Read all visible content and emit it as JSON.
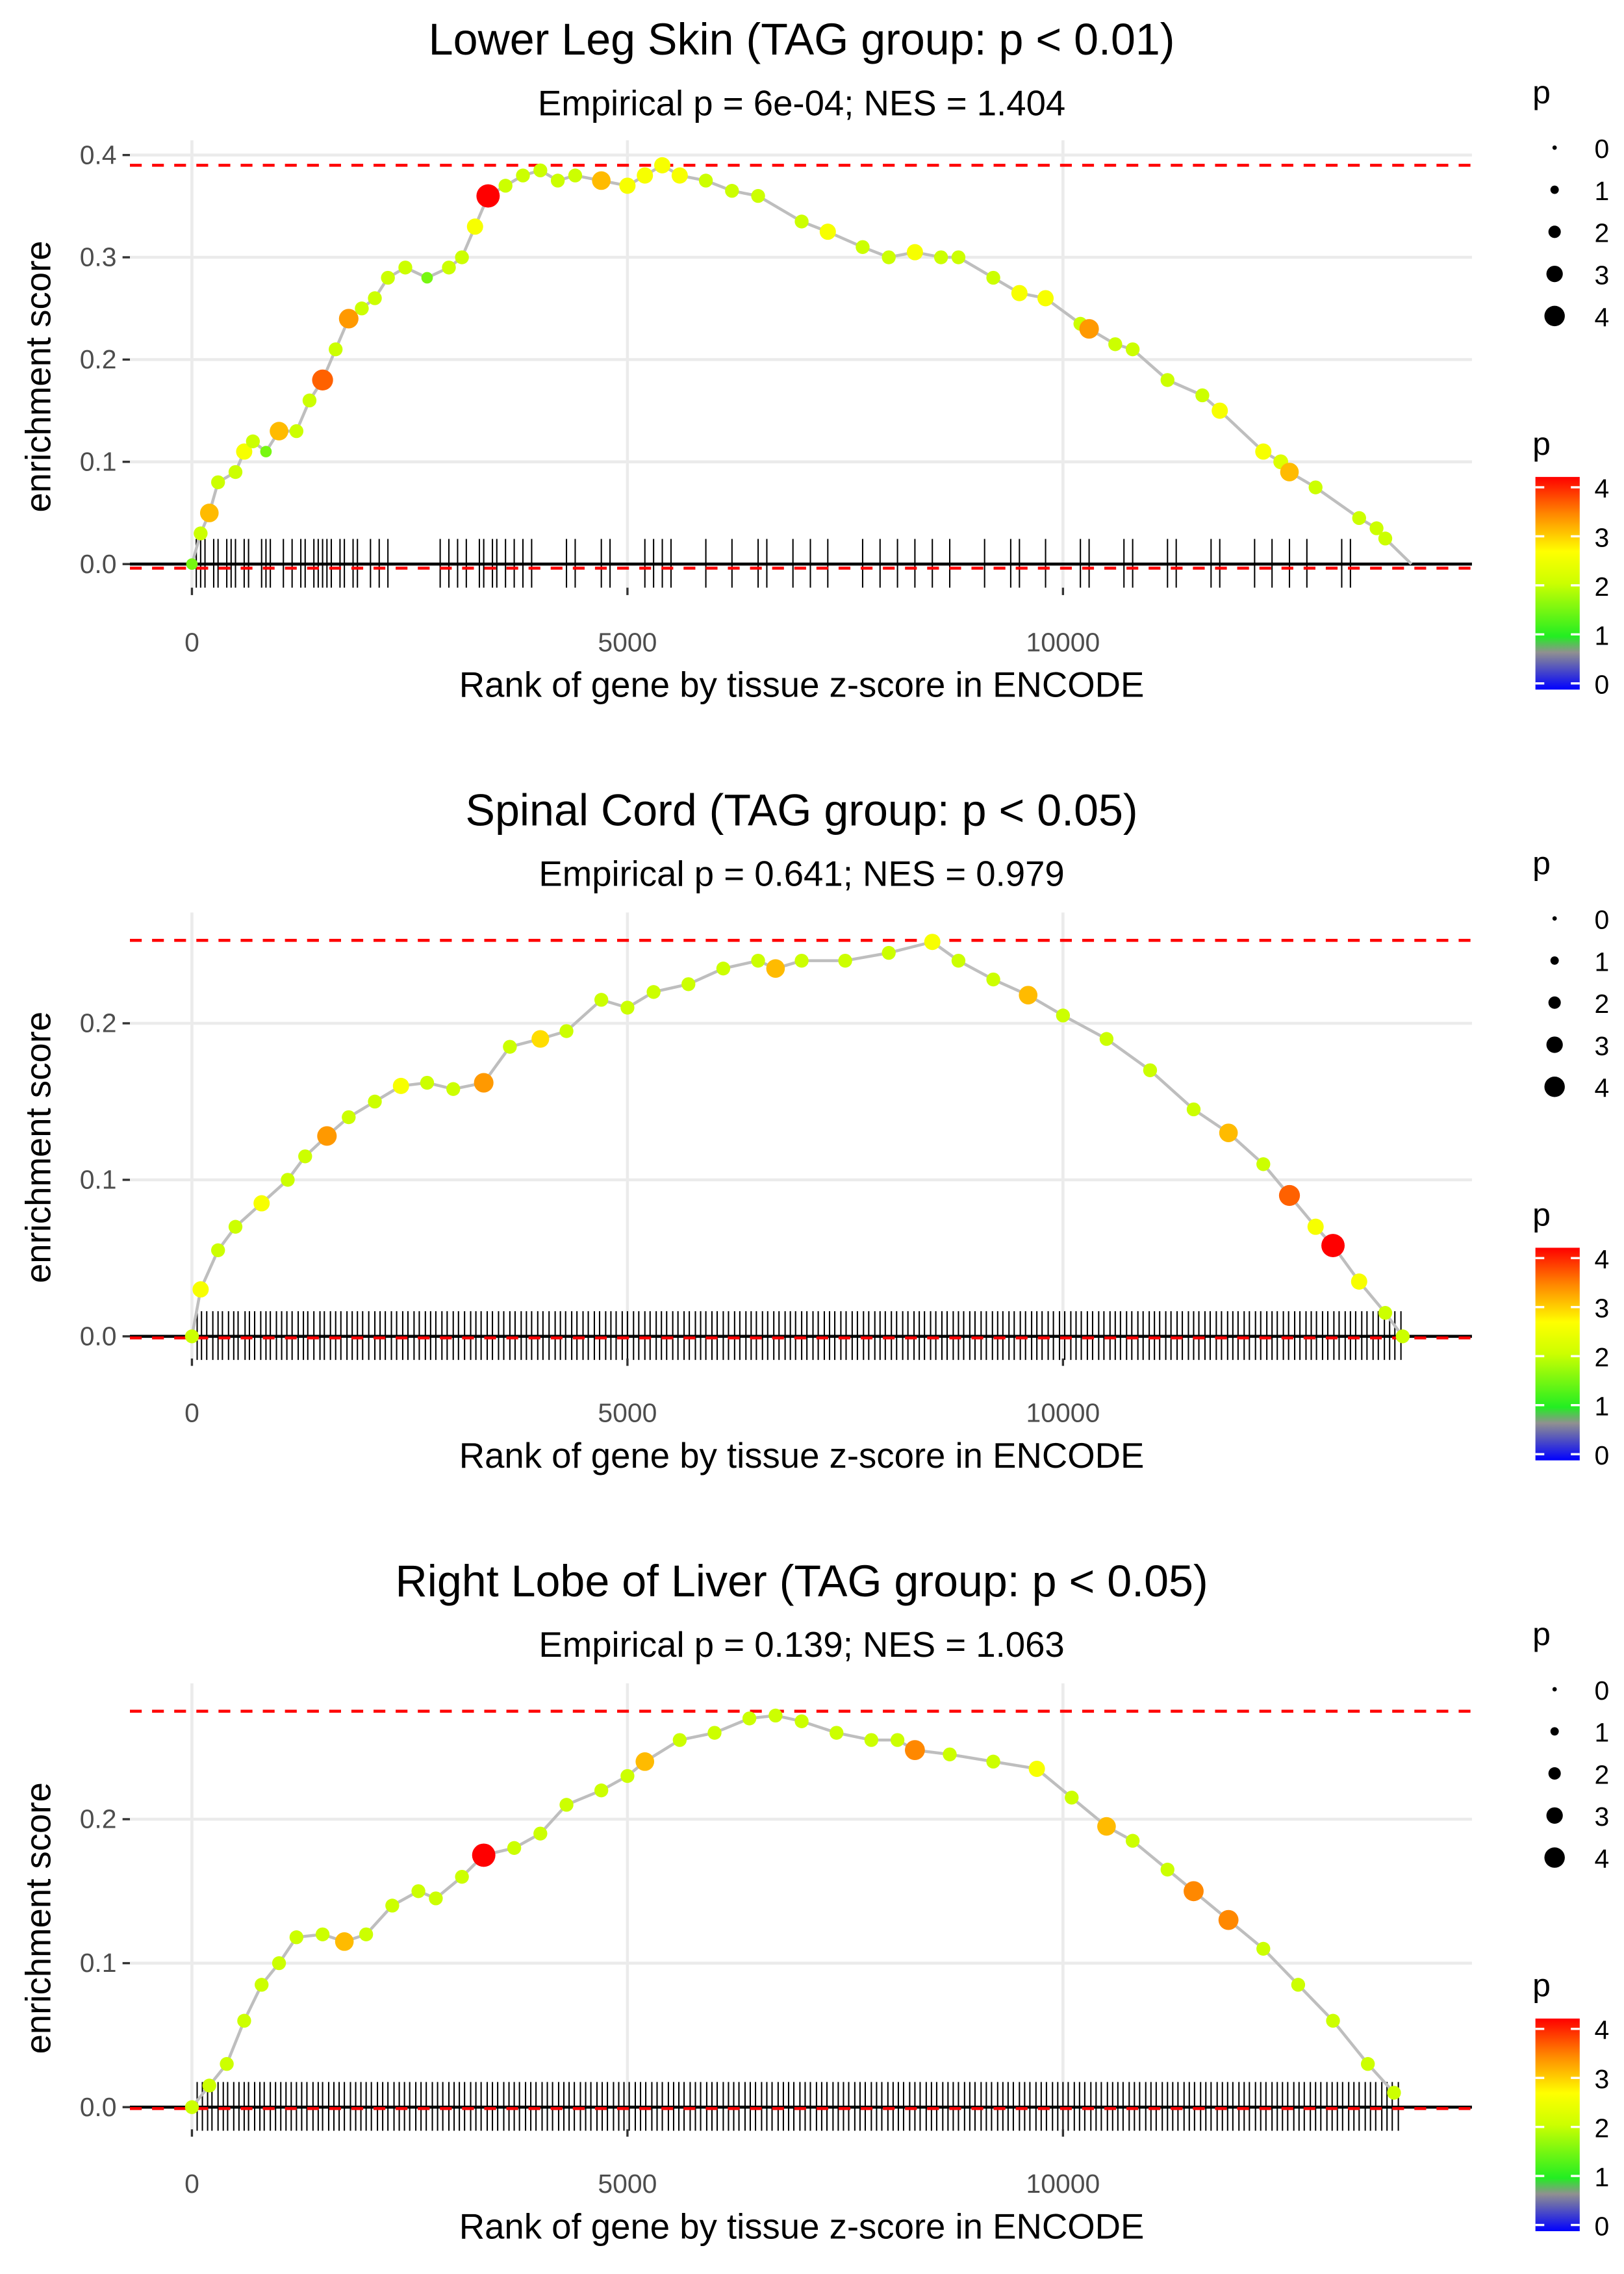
{
  "colors": {
    "threshold_line": "#ff0000",
    "running_line": "#bebebe",
    "grid": "#ebebeb",
    "baseline": "#000000"
  },
  "color_scale": {
    "domain": [
      0,
      0.7,
      1,
      2,
      2.6,
      3.3,
      4
    ],
    "range": [
      "#0000ff",
      "#909090",
      "#22ee22",
      "#ccff00",
      "#ffff00",
      "#ff8800",
      "#ff0000"
    ]
  },
  "legend": {
    "size_title": "p",
    "color_title": "p",
    "size_labels": [
      "0",
      "1",
      "2",
      "3",
      "4"
    ],
    "color_labels": [
      "4",
      "3",
      "2",
      "1",
      "0"
    ]
  },
  "chart_data": [
    {
      "type": "line",
      "title": "Lower Leg Skin (TAG group: p < 0.01)",
      "subtitle": "Empirical p = 6e-04; NES = 1.404",
      "xlabel": "Rank of gene by tissue z-score in ENCODE",
      "ylabel": "enrichment score",
      "xlim": [
        -700,
        14500
      ],
      "x_ticks": [
        "0",
        "5000",
        "10000"
      ],
      "x_tick_values": [
        0,
        5000,
        10000
      ],
      "y_ticks": [
        "0.0",
        "0.1",
        "0.2",
        "0.3",
        "0.4"
      ],
      "y_tick_values": [
        0,
        0.1,
        0.2,
        0.3,
        0.4
      ],
      "max_es": 0.39,
      "min_es": -0.004,
      "points": [
        [
          0,
          0,
          1.5
        ],
        [
          100,
          0.03,
          2
        ],
        [
          200,
          0.05,
          3
        ],
        [
          300,
          0.08,
          2
        ],
        [
          500,
          0.09,
          2
        ],
        [
          600,
          0.11,
          2.5
        ],
        [
          700,
          0.12,
          2
        ],
        [
          850,
          0.11,
          1.5
        ],
        [
          1000,
          0.13,
          3
        ],
        [
          1200,
          0.13,
          2
        ],
        [
          1350,
          0.16,
          2
        ],
        [
          1500,
          0.18,
          3.5
        ],
        [
          1650,
          0.21,
          2
        ],
        [
          1800,
          0.24,
          3.2
        ],
        [
          1950,
          0.25,
          2
        ],
        [
          2100,
          0.26,
          2
        ],
        [
          2250,
          0.28,
          2
        ],
        [
          2450,
          0.29,
          2
        ],
        [
          2700,
          0.28,
          1.5
        ],
        [
          2950,
          0.29,
          2
        ],
        [
          3100,
          0.3,
          2
        ],
        [
          3250,
          0.33,
          2.5
        ],
        [
          3400,
          0.36,
          4
        ],
        [
          3600,
          0.37,
          2
        ],
        [
          3800,
          0.38,
          2
        ],
        [
          4000,
          0.385,
          2
        ],
        [
          4200,
          0.375,
          2
        ],
        [
          4400,
          0.38,
          2
        ],
        [
          4700,
          0.375,
          3
        ],
        [
          5000,
          0.37,
          2.5
        ],
        [
          5200,
          0.38,
          2.5
        ],
        [
          5400,
          0.39,
          2.5
        ],
        [
          5600,
          0.38,
          2.5
        ],
        [
          5900,
          0.375,
          2
        ],
        [
          6200,
          0.365,
          2
        ],
        [
          6500,
          0.36,
          2
        ],
        [
          7000,
          0.335,
          2
        ],
        [
          7300,
          0.325,
          2.5
        ],
        [
          7700,
          0.31,
          2
        ],
        [
          8000,
          0.3,
          2
        ],
        [
          8300,
          0.305,
          2.5
        ],
        [
          8600,
          0.3,
          2
        ],
        [
          8800,
          0.3,
          2
        ],
        [
          9200,
          0.28,
          2
        ],
        [
          9500,
          0.265,
          2.5
        ],
        [
          9800,
          0.26,
          2.5
        ],
        [
          10200,
          0.235,
          2
        ],
        [
          10300,
          0.23,
          3.2
        ],
        [
          10600,
          0.215,
          2
        ],
        [
          10800,
          0.21,
          2
        ],
        [
          11200,
          0.18,
          2
        ],
        [
          11600,
          0.165,
          2
        ],
        [
          11800,
          0.15,
          2.5
        ],
        [
          12300,
          0.11,
          2.5
        ],
        [
          12500,
          0.1,
          2.2
        ],
        [
          12600,
          0.09,
          3
        ],
        [
          12900,
          0.075,
          2
        ],
        [
          13400,
          0.045,
          2
        ],
        [
          13600,
          0.035,
          2
        ],
        [
          13700,
          0.025,
          2
        ],
        [
          14000,
          0,
          0
        ]
      ],
      "hit_ranks": [
        50,
        100,
        150,
        250,
        300,
        400,
        450,
        500,
        600,
        650,
        800,
        850,
        900,
        1050,
        1150,
        1250,
        1300,
        1400,
        1450,
        1500,
        1550,
        1600,
        1700,
        1750,
        1850,
        1900,
        2050,
        2150,
        2250,
        2850,
        2950,
        3050,
        3150,
        3300,
        3350,
        3450,
        3500,
        3600,
        3700,
        3800,
        3900,
        4300,
        4400,
        4700,
        4800,
        5200,
        5300,
        5400,
        5500,
        5900,
        6200,
        6500,
        6600,
        6900,
        7100,
        7300,
        7700,
        7900,
        8100,
        8300,
        8500,
        8700,
        9100,
        9400,
        9500,
        9800,
        10200,
        10300,
        10700,
        10800,
        11200,
        11300,
        11700,
        11800,
        12200,
        12400,
        12600,
        12800,
        13200,
        13300
      ]
    },
    {
      "type": "line",
      "title": "Spinal Cord (TAG group: p < 0.05)",
      "subtitle": "Empirical p = 0.641; NES = 0.979",
      "xlabel": "Rank of gene by tissue z-score in ENCODE",
      "ylabel": "enrichment score",
      "xlim": [
        -700,
        14500
      ],
      "x_ticks": [
        "0",
        "5000",
        "10000"
      ],
      "x_tick_values": [
        0,
        5000,
        10000
      ],
      "y_ticks": [
        "0.0",
        "0.1",
        "0.2"
      ],
      "y_tick_values": [
        0,
        0.1,
        0.2
      ],
      "max_es": 0.253,
      "min_es": -0.001,
      "points": [
        [
          0,
          0,
          2
        ],
        [
          100,
          0.03,
          2.5
        ],
        [
          300,
          0.055,
          2
        ],
        [
          500,
          0.07,
          2
        ],
        [
          800,
          0.085,
          2.5
        ],
        [
          1100,
          0.1,
          2
        ],
        [
          1300,
          0.115,
          2
        ],
        [
          1550,
          0.128,
          3.2
        ],
        [
          1800,
          0.14,
          2
        ],
        [
          2100,
          0.15,
          2
        ],
        [
          2400,
          0.16,
          2.5
        ],
        [
          2700,
          0.162,
          2
        ],
        [
          3000,
          0.158,
          2
        ],
        [
          3350,
          0.162,
          3.2
        ],
        [
          3650,
          0.185,
          2
        ],
        [
          4000,
          0.19,
          2.8
        ],
        [
          4300,
          0.195,
          2
        ],
        [
          4700,
          0.215,
          2
        ],
        [
          5000,
          0.21,
          2
        ],
        [
          5300,
          0.22,
          2
        ],
        [
          5700,
          0.225,
          2
        ],
        [
          6100,
          0.235,
          2
        ],
        [
          6500,
          0.24,
          2
        ],
        [
          6700,
          0.235,
          3
        ],
        [
          7000,
          0.24,
          2
        ],
        [
          7500,
          0.24,
          2
        ],
        [
          8000,
          0.245,
          2
        ],
        [
          8500,
          0.252,
          2.5
        ],
        [
          8800,
          0.24,
          2
        ],
        [
          9200,
          0.228,
          2
        ],
        [
          9600,
          0.218,
          3
        ],
        [
          10000,
          0.205,
          2
        ],
        [
          10500,
          0.19,
          2
        ],
        [
          11000,
          0.17,
          2
        ],
        [
          11500,
          0.145,
          2
        ],
        [
          11900,
          0.13,
          3
        ],
        [
          12300,
          0.11,
          2
        ],
        [
          12600,
          0.09,
          3.5
        ],
        [
          12900,
          0.07,
          2.5
        ],
        [
          13100,
          0.058,
          4
        ],
        [
          13400,
          0.035,
          2.5
        ],
        [
          13700,
          0.015,
          2
        ],
        [
          13900,
          0,
          2
        ]
      ],
      "hit_ranks": [
        60,
        110,
        170,
        240,
        300,
        350,
        420,
        480,
        530,
        610,
        660,
        720,
        790,
        850,
        900,
        970,
        1030,
        1090,
        1150,
        1220,
        1280,
        1330,
        1400,
        1470,
        1520,
        1590,
        1650,
        1710,
        1780,
        1840,
        1900,
        1960,
        2030,
        2100,
        2160,
        2220,
        2290,
        2350,
        2420,
        2480,
        2550,
        2610,
        2680,
        2740,
        2800,
        2870,
        2930,
        3000,
        3060,
        3130,
        3200,
        3260,
        3320,
        3390,
        3450,
        3520,
        3580,
        3650,
        3710,
        3780,
        3840,
        3900,
        3970,
        4030,
        4100,
        4170,
        4230,
        4290,
        4360,
        4420,
        4490,
        4550,
        4620,
        4680,
        4750,
        4810,
        4870,
        4940,
        5000,
        5070,
        5130,
        5200,
        5260,
        5330,
        5390,
        5450,
        5520,
        5580,
        5650,
        5710,
        5780,
        5840,
        5900,
        5970,
        6030,
        6100,
        6160,
        6230,
        6290,
        6360,
        6420,
        6480,
        6550,
        6610,
        6680,
        6740,
        6810,
        6870,
        6930,
        7000,
        7060,
        7130,
        7190,
        7260,
        7320,
        7380,
        7450,
        7510,
        7580,
        7640,
        7710,
        7770,
        7840,
        7900,
        7960,
        8030,
        8090,
        8160,
        8220,
        8290,
        8350,
        8410,
        8480,
        8540,
        8610,
        8670,
        8740,
        8800,
        8860,
        8930,
        8990,
        9060,
        9120,
        9190,
        9250,
        9310,
        9380,
        9440,
        9510,
        9570,
        9640,
        9700,
        9760,
        9830,
        9890,
        9960,
        10020,
        10090,
        10150,
        10210,
        10280,
        10340,
        10410,
        10470,
        10540,
        10600,
        10660,
        10730,
        10790,
        10860,
        10920,
        10990,
        11050,
        11110,
        11180,
        11240,
        11310,
        11370,
        11440,
        11500,
        11560,
        11630,
        11690,
        11760,
        11820,
        11890,
        11950,
        12010,
        12080,
        12140,
        12210,
        12270,
        12340,
        12400,
        12460,
        12530,
        12590,
        12660,
        12720,
        12790,
        12850,
        12910,
        12980,
        13040,
        13110,
        13170,
        13240,
        13300,
        13360,
        13430,
        13490,
        13560,
        13620,
        13690,
        13750,
        13810,
        13880
      ]
    },
    {
      "type": "line",
      "title": "Right Lobe of Liver (TAG group: p < 0.05)",
      "subtitle": "Empirical p = 0.139; NES = 1.063",
      "xlabel": "Rank of gene by tissue z-score in ENCODE",
      "ylabel": "enrichment score",
      "xlim": [
        -700,
        14500
      ],
      "x_ticks": [
        "0",
        "5000",
        "10000"
      ],
      "x_tick_values": [
        0,
        5000,
        10000
      ],
      "y_ticks": [
        "0.0",
        "0.1",
        "0.2"
      ],
      "y_tick_values": [
        0,
        0.1,
        0.2
      ],
      "max_es": 0.275,
      "min_es": -0.001,
      "points": [
        [
          0,
          0,
          2
        ],
        [
          200,
          0.015,
          2
        ],
        [
          400,
          0.03,
          2
        ],
        [
          600,
          0.06,
          2
        ],
        [
          800,
          0.085,
          2
        ],
        [
          1000,
          0.1,
          2
        ],
        [
          1200,
          0.118,
          2
        ],
        [
          1500,
          0.12,
          2
        ],
        [
          1750,
          0.115,
          3
        ],
        [
          2000,
          0.12,
          2
        ],
        [
          2300,
          0.14,
          2
        ],
        [
          2600,
          0.15,
          2
        ],
        [
          2800,
          0.145,
          2
        ],
        [
          3100,
          0.16,
          2
        ],
        [
          3350,
          0.175,
          4
        ],
        [
          3700,
          0.18,
          2
        ],
        [
          4000,
          0.19,
          2
        ],
        [
          4300,
          0.21,
          2
        ],
        [
          4700,
          0.22,
          2
        ],
        [
          5000,
          0.23,
          2
        ],
        [
          5200,
          0.24,
          3
        ],
        [
          5600,
          0.255,
          2
        ],
        [
          6000,
          0.26,
          2
        ],
        [
          6400,
          0.27,
          2
        ],
        [
          6700,
          0.272,
          2
        ],
        [
          7000,
          0.268,
          2
        ],
        [
          7400,
          0.26,
          2
        ],
        [
          7800,
          0.255,
          2
        ],
        [
          8100,
          0.255,
          2
        ],
        [
          8300,
          0.248,
          3.3
        ],
        [
          8700,
          0.245,
          2
        ],
        [
          9200,
          0.24,
          2
        ],
        [
          9700,
          0.235,
          2.5
        ],
        [
          10100,
          0.215,
          2
        ],
        [
          10500,
          0.195,
          3
        ],
        [
          10800,
          0.185,
          2
        ],
        [
          11200,
          0.165,
          2
        ],
        [
          11500,
          0.15,
          3.3
        ],
        [
          11900,
          0.13,
          3.3
        ],
        [
          12300,
          0.11,
          2
        ],
        [
          12700,
          0.085,
          2
        ],
        [
          13100,
          0.06,
          2
        ],
        [
          13500,
          0.03,
          2
        ],
        [
          13800,
          0.01,
          2
        ]
      ],
      "hit_ranks": [
        60,
        120,
        180,
        230,
        300,
        360,
        410,
        480,
        540,
        600,
        650,
        720,
        780,
        830,
        900,
        960,
        1020,
        1080,
        1140,
        1200,
        1260,
        1320,
        1390,
        1450,
        1500,
        1570,
        1630,
        1690,
        1750,
        1820,
        1880,
        1940,
        2000,
        2060,
        2130,
        2190,
        2250,
        2320,
        2380,
        2440,
        2500,
        2570,
        2630,
        2690,
        2760,
        2820,
        2880,
        2950,
        3010,
        3070,
        3130,
        3200,
        3260,
        3320,
        3390,
        3450,
        3510,
        3580,
        3640,
        3700,
        3760,
        3830,
        3890,
        3950,
        4020,
        4080,
        4140,
        4210,
        4270,
        4330,
        4390,
        4460,
        4520,
        4580,
        4650,
        4710,
        4770,
        4840,
        4900,
        4960,
        5020,
        5090,
        5150,
        5210,
        5280,
        5340,
        5400,
        5470,
        5530,
        5590,
        5650,
        5720,
        5780,
        5840,
        5910,
        5970,
        6030,
        6100,
        6160,
        6220,
        6280,
        6350,
        6410,
        6470,
        6540,
        6600,
        6660,
        6730,
        6790,
        6850,
        6910,
        6980,
        7040,
        7100,
        7170,
        7230,
        7290,
        7360,
        7420,
        7480,
        7540,
        7610,
        7670,
        7730,
        7800,
        7860,
        7920,
        7990,
        8050,
        8110,
        8170,
        8240,
        8300,
        8360,
        8430,
        8490,
        8550,
        8620,
        8680,
        8740,
        8800,
        8870,
        8930,
        8990,
        9060,
        9120,
        9180,
        9250,
        9310,
        9370,
        9430,
        9500,
        9560,
        9620,
        9690,
        9750,
        9810,
        9880,
        9940,
        10000,
        10060,
        10130,
        10190,
        10250,
        10320,
        10380,
        10440,
        10510,
        10570,
        10630,
        10690,
        10760,
        10820,
        10880,
        10950,
        11010,
        11070,
        11140,
        11200,
        11260,
        11320,
        11390,
        11450,
        11510,
        11580,
        11640,
        11700,
        11770,
        11830,
        11890,
        11950,
        12020,
        12080,
        12140,
        12210,
        12270,
        12330,
        12400,
        12460,
        12520,
        12580,
        12650,
        12710,
        12770,
        12840,
        12900,
        12960,
        13030,
        13090,
        13150,
        13210,
        13280,
        13340,
        13400,
        13470,
        13530,
        13590,
        13660,
        13720,
        13780,
        13850
      ]
    }
  ]
}
